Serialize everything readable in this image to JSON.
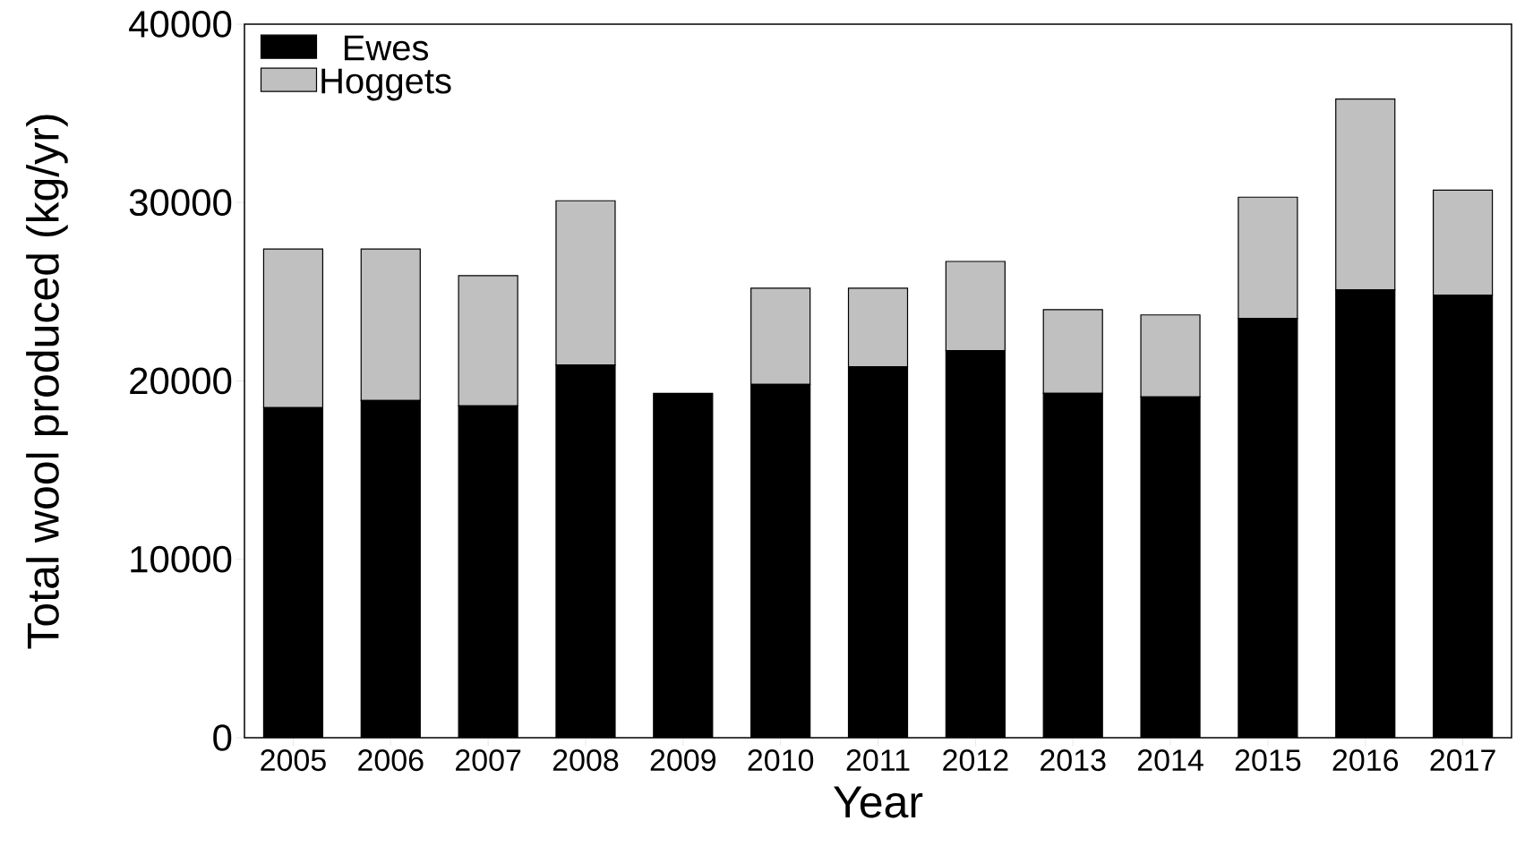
{
  "chart_data": {
    "type": "bar",
    "stacked": true,
    "xlabel": "Year",
    "ylabel": "Total wool produced (kg/yr)",
    "categories": [
      "2005",
      "2006",
      "2007",
      "2008",
      "2009",
      "2010",
      "2011",
      "2012",
      "2013",
      "2014",
      "2015",
      "2016",
      "2017"
    ],
    "series": [
      {
        "name": "Ewes",
        "color": "#000000",
        "values": [
          18500,
          18900,
          18600,
          20900,
          19300,
          19800,
          20800,
          21700,
          19300,
          19100,
          23500,
          25100,
          24800
        ]
      },
      {
        "name": "Hoggets",
        "color": "#c0c0c0",
        "values": [
          8900,
          8500,
          7300,
          9200,
          null,
          5400,
          4400,
          5000,
          4700,
          4600,
          6800,
          10700,
          5900
        ]
      }
    ],
    "ylim": [
      0,
      40000
    ],
    "yticks": [
      0,
      10000,
      20000,
      30000,
      40000
    ],
    "legend": "top left",
    "grid": false
  }
}
